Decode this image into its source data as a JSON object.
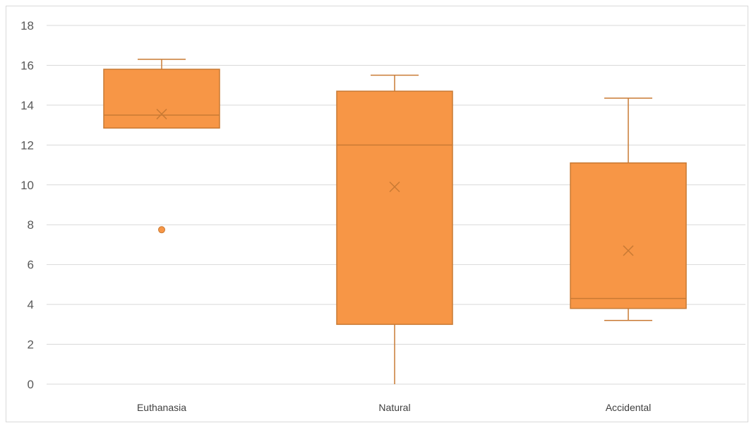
{
  "chart_data": {
    "type": "boxplot",
    "title": "",
    "xlabel": "",
    "ylabel": "",
    "ylim": [
      0,
      18
    ],
    "yticks": [
      0,
      2,
      4,
      6,
      8,
      10,
      12,
      14,
      16,
      18
    ],
    "grid": true,
    "legend": "none",
    "categories": [
      "Euthanasia",
      "Natural",
      "Accidental"
    ],
    "boxes": [
      {
        "category": "Euthanasia",
        "whisker_low": 12.85,
        "q1": 12.85,
        "median": 13.5,
        "q3": 15.8,
        "whisker_high": 16.3,
        "mean": 13.55,
        "outliers": [
          7.75
        ]
      },
      {
        "category": "Natural",
        "whisker_low": 0.0,
        "q1": 3.0,
        "median": 12.0,
        "q3": 14.7,
        "whisker_high": 15.5,
        "mean": 9.9,
        "outliers": []
      },
      {
        "category": "Accidental",
        "whisker_low": 3.2,
        "q1": 3.8,
        "median": 4.3,
        "q3": 11.1,
        "whisker_high": 14.35,
        "mean": 6.7,
        "outliers": []
      }
    ]
  },
  "colors": {
    "box_fill": "#f79646",
    "box_stroke": "#c97a34",
    "gridline": "#d9d9d9",
    "axis_text": "#595959"
  }
}
